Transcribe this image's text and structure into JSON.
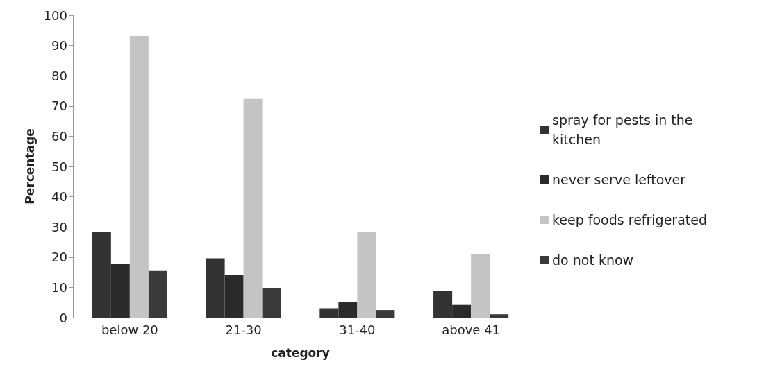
{
  "chart_data": {
    "type": "bar",
    "xlabel": "category",
    "ylabel": "Percentage",
    "categories": [
      "below 20",
      "21-30",
      "31-40",
      "above 41"
    ],
    "series": [
      {
        "name": "spray for pests in the kitchen",
        "color": "#333333",
        "values": [
          28.4,
          19.6,
          3.1,
          8.8
        ]
      },
      {
        "name": "never serve leftover",
        "color": "#2a2a2a",
        "values": [
          17.9,
          14.0,
          5.3,
          4.2
        ]
      },
      {
        "name": "keep foods refrigerated",
        "color": "#c4c4c4",
        "values": [
          93.1,
          72.3,
          28.2,
          21.0
        ]
      },
      {
        "name": "do not know",
        "color": "#3a3a3a",
        "values": [
          15.4,
          9.8,
          2.5,
          1.1
        ]
      }
    ],
    "ylim": [
      0,
      100
    ],
    "yticks": [
      0,
      10,
      20,
      30,
      40,
      50,
      60,
      70,
      80,
      90,
      100
    ],
    "grid": false,
    "legend": "right"
  }
}
